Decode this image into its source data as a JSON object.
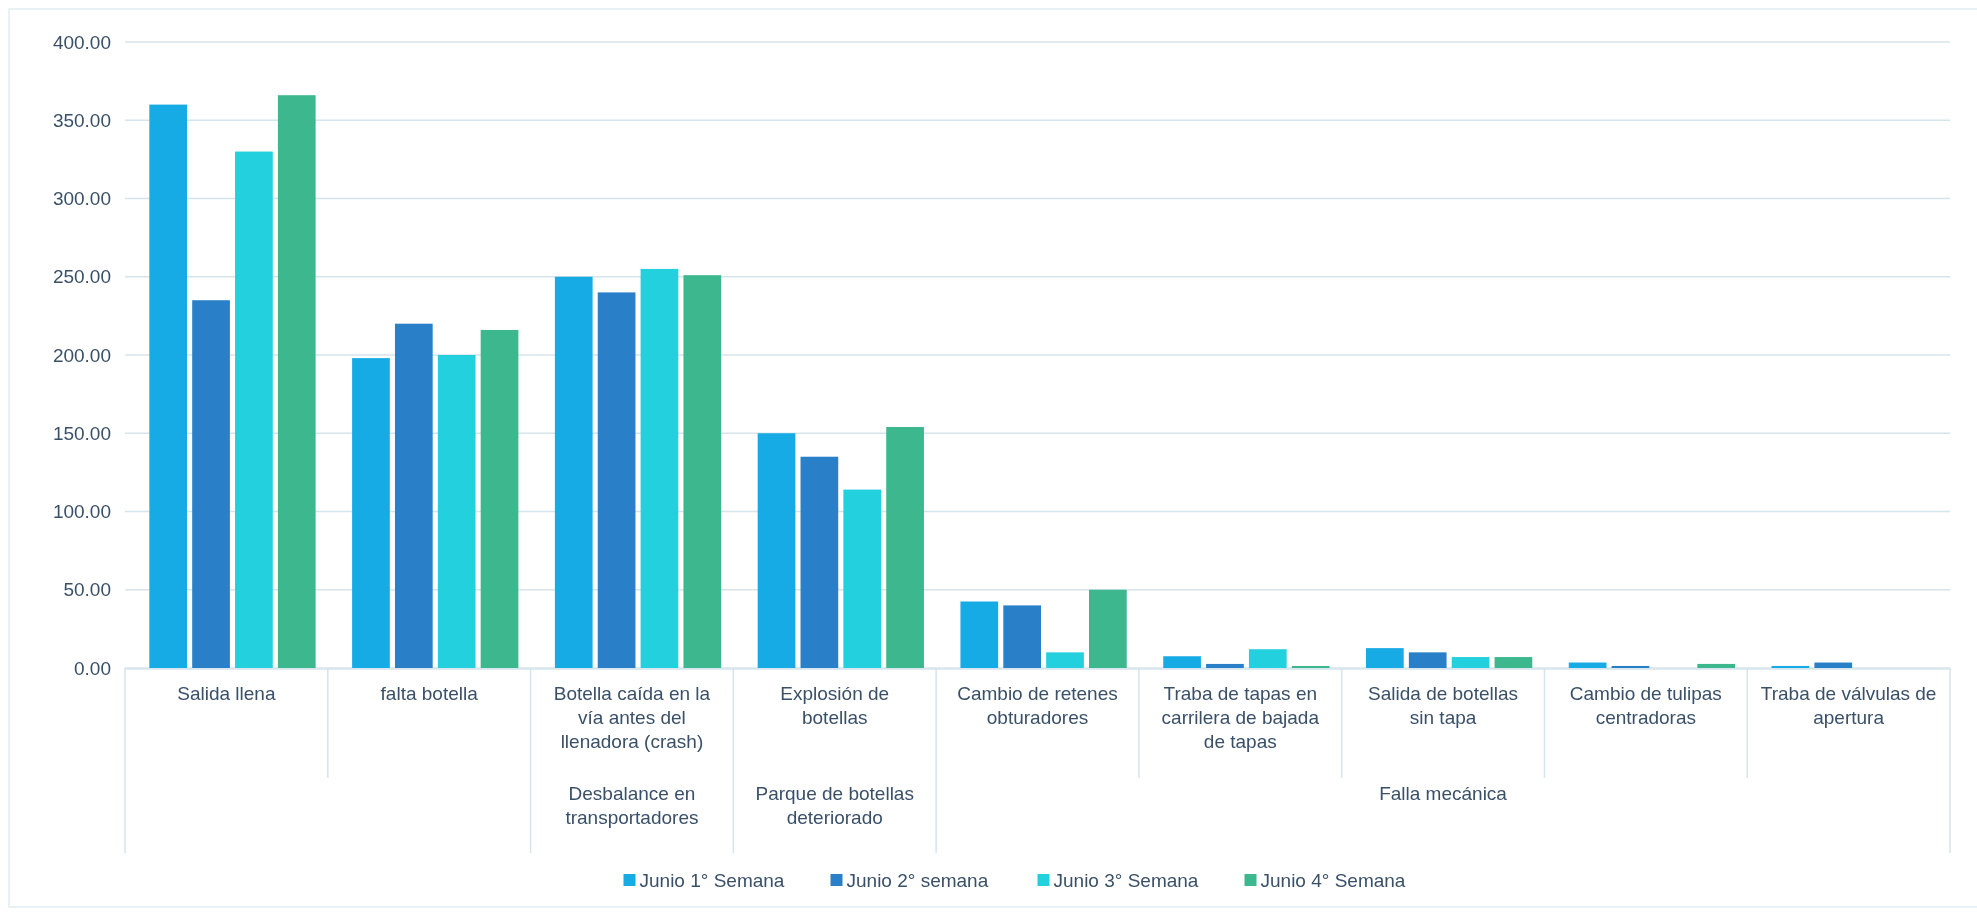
{
  "chart_data": {
    "type": "bar",
    "categories": [
      "Salida llena",
      "falta botella",
      "Botella caída en la vía antes del llenadora (crash)",
      "Explosión de botellas",
      "Cambio de retenes obturadores",
      "Traba de tapas en carrilera de bajada de tapas",
      "Salida de botellas sin tapa",
      "Cambio de tulipas centradoras",
      "Traba de válvulas de apertura"
    ],
    "series": [
      {
        "name": "Junio 1° Semana",
        "color": "#17abe6",
        "values": [
          360,
          198,
          250,
          150,
          42.5,
          7.5,
          12.7,
          3.5,
          1.3
        ]
      },
      {
        "name": "Junio 2° semana",
        "color": "#2a80c8",
        "values": [
          235,
          220,
          240,
          135,
          40,
          2.6,
          10,
          1.3,
          3.5
        ]
      },
      {
        "name": "Junio 3° Semana",
        "color": "#23d0dd",
        "values": [
          330,
          200,
          255,
          114,
          10,
          12,
          7,
          null,
          null
        ]
      },
      {
        "name": "Junio 4° Semana",
        "color": "#3cb78e",
        "values": [
          366,
          216,
          251,
          154,
          50,
          1.3,
          7,
          2.6,
          null
        ]
      }
    ],
    "annotations": [
      "Desbalance en transportadores",
      "Parque de botellas deteriorado",
      "Falla mecánica"
    ],
    "ylim": [
      0,
      400
    ],
    "yticks": [
      {
        "value": 0,
        "label": "0.00"
      },
      {
        "value": 50,
        "label": "50.00"
      },
      {
        "value": 100,
        "label": "100.00"
      },
      {
        "value": 150,
        "label": "150.00"
      },
      {
        "value": 200,
        "label": "200.00"
      },
      {
        "value": 250,
        "label": "250.00"
      },
      {
        "value": 300,
        "label": "300.00"
      },
      {
        "value": 350,
        "label": "350.00"
      },
      {
        "value": 400,
        "label": "400.00"
      }
    ],
    "grid": "y",
    "legend": "bottom"
  }
}
